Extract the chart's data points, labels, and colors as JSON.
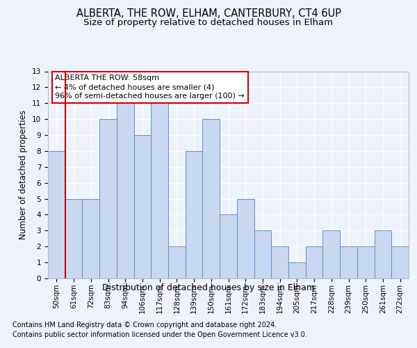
{
  "title1": "ALBERTA, THE ROW, ELHAM, CANTERBURY, CT4 6UP",
  "title2": "Size of property relative to detached houses in Elham",
  "xlabel": "Distribution of detached houses by size in Elham",
  "ylabel": "Number of detached properties",
  "categories": [
    "50sqm",
    "61sqm",
    "72sqm",
    "83sqm",
    "94sqm",
    "106sqm",
    "117sqm",
    "128sqm",
    "139sqm",
    "150sqm",
    "161sqm",
    "172sqm",
    "183sqm",
    "194sqm",
    "205sqm",
    "217sqm",
    "228sqm",
    "239sqm",
    "250sqm",
    "261sqm",
    "272sqm"
  ],
  "values": [
    8,
    5,
    5,
    10,
    11,
    9,
    11,
    2,
    8,
    10,
    4,
    5,
    3,
    2,
    1,
    2,
    3,
    2,
    2,
    3,
    2
  ],
  "bar_color": "#c8d8f0",
  "bar_edge_color": "#6090c8",
  "vline_color": "#cc0000",
  "annotation_line1": "ALBERTA THE ROW: 58sqm",
  "annotation_line2": "← 4% of detached houses are smaller (4)",
  "annotation_line3": "96% of semi-detached houses are larger (100) →",
  "annotation_box_color": "#ffffff",
  "annotation_box_edge": "#cc0000",
  "ylim": [
    0,
    13
  ],
  "yticks": [
    0,
    1,
    2,
    3,
    4,
    5,
    6,
    7,
    8,
    9,
    10,
    11,
    12,
    13
  ],
  "footer1": "Contains HM Land Registry data © Crown copyright and database right 2024.",
  "footer2": "Contains public sector information licensed under the Open Government Licence v3.0.",
  "bg_color": "#eef2fb",
  "plot_bg_color": "#eef2fb",
  "grid_color": "#ffffff",
  "title1_fontsize": 10.5,
  "title2_fontsize": 9.5,
  "xlabel_fontsize": 9,
  "ylabel_fontsize": 8.5,
  "tick_fontsize": 7.5,
  "annotation_fontsize": 8,
  "footer_fontsize": 7
}
